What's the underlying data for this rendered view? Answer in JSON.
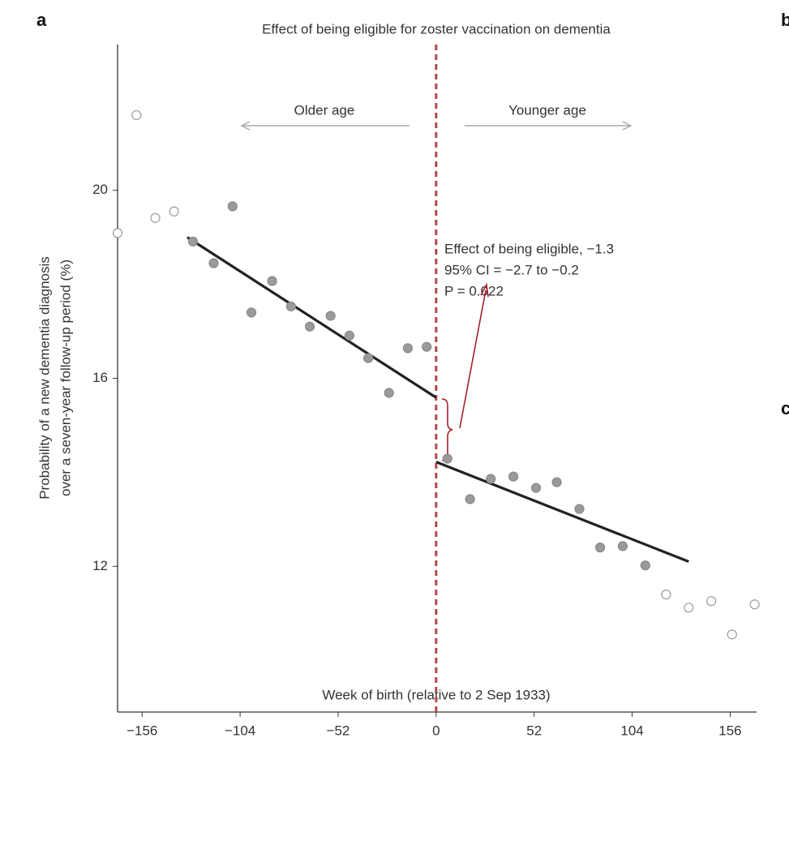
{
  "panel_labels": [
    "a",
    "b",
    "c"
  ],
  "chart_data": {
    "type": "scatter",
    "title": "Effect of being eligible for zoster vaccination on dementia",
    "x_label": "Week of birth (relative to 2 Sep 1933)",
    "y_label": [
      "Probability of a new dementia diagnosis",
      "over a seven-year follow-up period (%)"
    ],
    "direction_labels": [
      "Older age",
      "Younger age"
    ],
    "annotation": [
      "Effect of being eligible, −1.3",
      "95% CI = −2.7 to −0.2",
      "P = 0.022"
    ],
    "xlim": [
      -169,
      170
    ],
    "ylim": [
      8.9,
      23.1
    ],
    "xticks": [
      {
        "value": -156,
        "label": "−156"
      },
      {
        "value": -104,
        "label": "−104"
      },
      {
        "value": -52,
        "label": "−52"
      },
      0,
      52,
      104,
      156
    ],
    "yticks": [
      12,
      16,
      20
    ],
    "threshold": 0,
    "threshold_color": "#b5474b",
    "series": [
      {
        "color": "#9a9a9a",
        "marker": "filled",
        "x": [
          -129,
          -118,
          -108,
          -98,
          -87,
          -77,
          -67,
          -56,
          -46,
          -36,
          -25,
          -15,
          -5,
          6,
          18,
          29,
          41,
          53,
          64,
          76,
          87,
          99,
          111
        ],
        "values": [
          18.91,
          18.45,
          19.66,
          17.4,
          18.07,
          17.53,
          17.1,
          17.33,
          16.91,
          16.43,
          15.69,
          16.64,
          16.67,
          14.29,
          13.43,
          13.86,
          13.91,
          13.67,
          13.79,
          13.22,
          12.4,
          12.43,
          12.02
        ]
      },
      {
        "color": "#9a9a9a",
        "marker": "open",
        "x": [
          -169,
          -159,
          -149,
          -139,
          122,
          134,
          146,
          157,
          169
        ],
        "values": [
          19.09,
          21.6,
          19.41,
          19.55,
          11.4,
          11.12,
          11.26,
          10.55,
          11.19
        ]
      }
    ],
    "fit_lines": [
      {
        "color": "#222222",
        "x": [
          -132,
          0
        ],
        "values": [
          19.0,
          15.59
        ]
      },
      {
        "color": "#222222",
        "x": [
          0,
          134
        ],
        "values": [
          14.22,
          12.1
        ]
      }
    ]
  }
}
